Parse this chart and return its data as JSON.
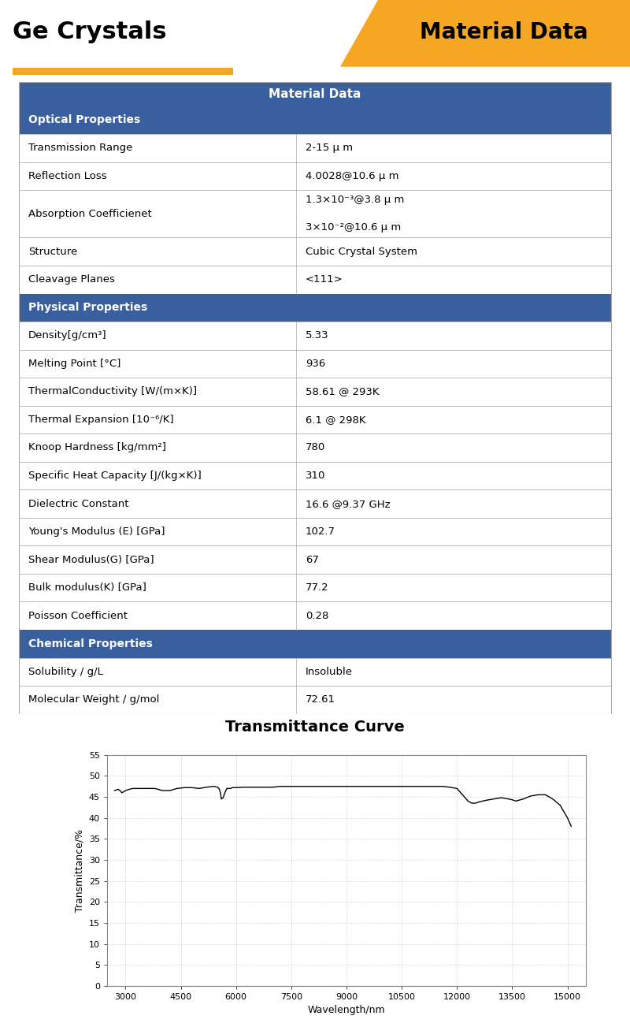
{
  "title_left": "Ge Crystals",
  "title_right": "Material Data",
  "header_color": "#3A5F9F",
  "subheader_color": "#3A5F9F",
  "orange_color": "#F5A623",
  "bg_color": "#FFFFFF",
  "table_header": "Material Data",
  "sections": [
    {
      "name": "Optical Properties",
      "is_section": true
    },
    {
      "property": "Transmission Range",
      "value": "2-15 μ m",
      "is_section": false
    },
    {
      "property": "Reflection Loss",
      "value": "4.0028@10.6 μ m",
      "is_section": false
    },
    {
      "property": "Absorption Coefficienet",
      "value": "1.3×10⁻³@3.8 μ m\n3×10⁻²@10.6 μ m",
      "is_section": false,
      "tall": true
    },
    {
      "property": "Structure",
      "value": "Cubic Crystal System",
      "is_section": false
    },
    {
      "property": "Cleavage Planes",
      "value": "<111>",
      "is_section": false
    },
    {
      "name": "Physical Properties",
      "is_section": true
    },
    {
      "property": "Density[g/cm³]",
      "value": "5.33",
      "is_section": false
    },
    {
      "property": "Melting Point [°C]",
      "value": "936",
      "is_section": false
    },
    {
      "property": "ThermalConductivity [W/(m×K)]",
      "value": "58.61 @ 293K",
      "is_section": false
    },
    {
      "property": "Thermal Expansion [10⁻⁶/K]",
      "value": "6.1 @ 298K",
      "is_section": false
    },
    {
      "property": "Knoop Hardness [kg/mm²]",
      "value": "780",
      "is_section": false
    },
    {
      "property": "Specific Heat Capacity [J/(kg×K)]",
      "value": "310",
      "is_section": false
    },
    {
      "property": "Dielectric Constant",
      "value": "16.6 @9.37 GHz",
      "is_section": false
    },
    {
      "property": "Young's Modulus (E) [GPa]",
      "value": "102.7",
      "is_section": false
    },
    {
      "property": "Shear Modulus(G) [GPa]",
      "value": "67",
      "is_section": false
    },
    {
      "property": "Bulk modulus(K) [GPa]",
      "value": "77.2",
      "is_section": false
    },
    {
      "property": "Poisson Coefficient",
      "value": "0.28",
      "is_section": false
    },
    {
      "name": "Chemical Properties",
      "is_section": true
    },
    {
      "property": "Solubility / g/L",
      "value": "Insoluble",
      "is_section": false
    },
    {
      "property": "Molecular Weight / g/mol",
      "value": "72.61",
      "is_section": false
    }
  ],
  "curve_title": "Transmittance Curve",
  "curve_xlabel": "Wavelength/nm",
  "curve_ylabel": "Transmittance/%",
  "curve_xlim": [
    2500,
    15500
  ],
  "curve_ylim": [
    0,
    55
  ],
  "curve_xticks": [
    3000,
    4500,
    6000,
    7500,
    9000,
    10500,
    12000,
    13500,
    15000
  ],
  "curve_yticks": [
    0,
    5,
    10,
    15,
    20,
    25,
    30,
    35,
    40,
    45,
    50,
    55
  ],
  "curve_x": [
    2700,
    2800,
    2850,
    2900,
    2950,
    3000,
    3100,
    3200,
    3400,
    3600,
    3800,
    4000,
    4200,
    4400,
    4600,
    4800,
    5000,
    5200,
    5400,
    5500,
    5550,
    5580,
    5600,
    5650,
    5700,
    5750,
    5800,
    5850,
    5900,
    6000,
    6200,
    6400,
    6600,
    6800,
    7000,
    7200,
    7400,
    7600,
    7800,
    8000,
    8200,
    8400,
    8600,
    8800,
    9000,
    9200,
    9400,
    9600,
    9800,
    10000,
    10200,
    10400,
    10600,
    10800,
    11000,
    11200,
    11400,
    11600,
    11800,
    12000,
    12100,
    12200,
    12300,
    12400,
    12500,
    12600,
    12800,
    13000,
    13200,
    13400,
    13500,
    13600,
    13800,
    14000,
    14200,
    14400,
    14600,
    14800,
    15000,
    15100
  ],
  "curve_y": [
    46.5,
    46.8,
    46.5,
    46.0,
    46.2,
    46.5,
    46.8,
    47.0,
    47.0,
    47.0,
    47.0,
    46.5,
    46.5,
    47.0,
    47.2,
    47.2,
    47.0,
    47.3,
    47.5,
    47.3,
    46.8,
    45.8,
    44.5,
    44.8,
    46.0,
    47.0,
    47.0,
    47.0,
    47.2,
    47.2,
    47.3,
    47.3,
    47.3,
    47.3,
    47.3,
    47.5,
    47.5,
    47.5,
    47.5,
    47.5,
    47.5,
    47.5,
    47.5,
    47.5,
    47.5,
    47.5,
    47.5,
    47.5,
    47.5,
    47.5,
    47.5,
    47.5,
    47.5,
    47.5,
    47.5,
    47.5,
    47.5,
    47.5,
    47.3,
    47.0,
    46.0,
    45.0,
    44.0,
    43.5,
    43.5,
    43.8,
    44.2,
    44.5,
    44.8,
    44.5,
    44.3,
    44.0,
    44.5,
    45.2,
    45.5,
    45.5,
    44.5,
    43.0,
    40.0,
    38.0
  ]
}
